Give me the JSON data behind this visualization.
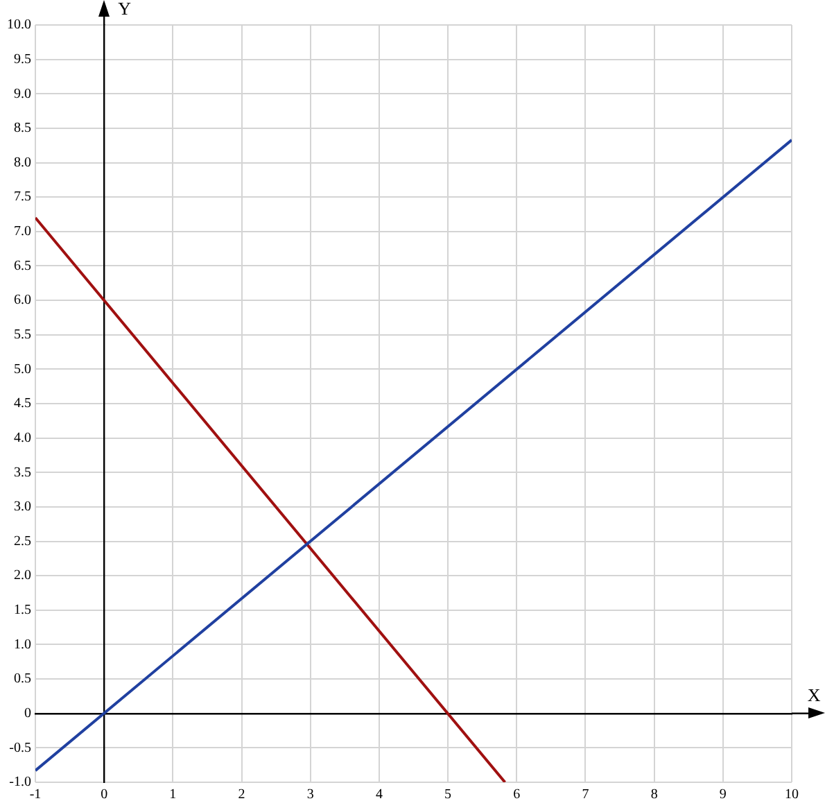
{
  "chart_data": {
    "type": "line",
    "xlabel": "X",
    "ylabel": "Y",
    "series": [
      {
        "color": "#2040a0",
        "x": [
          -1,
          10
        ],
        "values": [
          -0.83,
          8.33
        ]
      },
      {
        "color": "#a01010",
        "x": [
          -1,
          5.83
        ],
        "values": [
          7.2,
          -1
        ]
      }
    ],
    "xlim": [
      -1,
      10
    ],
    "xticks": [
      -1,
      0,
      1,
      2,
      3,
      4,
      5,
      6,
      7,
      8,
      9,
      10
    ],
    "ylim": [
      -1,
      10
    ],
    "yticks": [
      {
        "value": -1,
        "label": "-1.0"
      },
      -0.5,
      0,
      0.5,
      {
        "value": 1,
        "label": "1.0"
      },
      1.5,
      {
        "value": 2,
        "label": "2.0"
      },
      2.5,
      {
        "value": 3,
        "label": "3.0"
      },
      3.5,
      {
        "value": 4,
        "label": "4.0"
      },
      4.5,
      {
        "value": 5,
        "label": "5.0"
      },
      5.5,
      {
        "value": 6,
        "label": "6.0"
      },
      6.5,
      {
        "value": 7,
        "label": "7.0"
      },
      7.5,
      {
        "value": 8,
        "label": "8.0"
      },
      8.5,
      {
        "value": 9,
        "label": "9.0"
      },
      9.5,
      {
        "value": 10,
        "label": "10.0"
      }
    ],
    "grid": true,
    "legend": false,
    "marker": "none",
    "line_style": "solid"
  }
}
